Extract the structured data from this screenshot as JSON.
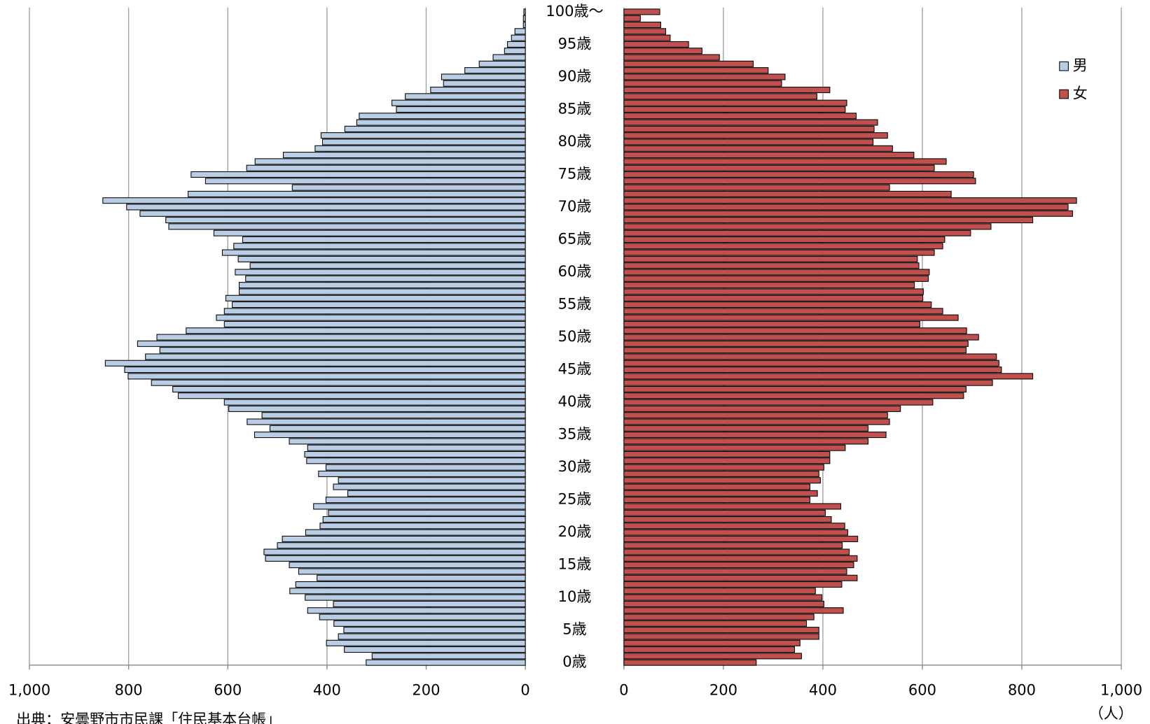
{
  "chart_data": {
    "type": "pyramid",
    "categories": [
      "0歳",
      null,
      null,
      null,
      null,
      "5歳",
      null,
      null,
      null,
      null,
      "10歳",
      null,
      null,
      null,
      null,
      "15歳",
      null,
      null,
      null,
      null,
      "20歳",
      null,
      null,
      null,
      null,
      "25歳",
      null,
      null,
      null,
      null,
      "30歳",
      null,
      null,
      null,
      null,
      "35歳",
      null,
      null,
      null,
      null,
      "40歳",
      null,
      null,
      null,
      null,
      "45歳",
      null,
      null,
      null,
      null,
      "50歳",
      null,
      null,
      null,
      null,
      "55歳",
      null,
      null,
      null,
      null,
      "60歳",
      null,
      null,
      null,
      null,
      "65歳",
      null,
      null,
      null,
      null,
      "70歳",
      null,
      null,
      null,
      null,
      "75歳",
      null,
      null,
      null,
      null,
      "80歳",
      null,
      null,
      null,
      null,
      "85歳",
      null,
      null,
      null,
      null,
      "90歳",
      null,
      null,
      null,
      null,
      "95歳",
      null,
      null,
      null,
      null,
      "100歳～"
    ],
    "series": [
      {
        "name": "男",
        "color": "#b9cde5",
        "values": [
          321,
          309,
          365,
          401,
          377,
          366,
          386,
          415,
          439,
          387,
          444,
          475,
          463,
          420,
          457,
          476,
          524,
          527,
          500,
          490,
          443,
          414,
          408,
          397,
          427,
          402,
          358,
          387,
          377,
          417,
          402,
          441,
          445,
          439,
          476,
          546,
          515,
          561,
          531,
          598,
          607,
          700,
          711,
          754,
          801,
          808,
          847,
          766,
          737,
          782,
          743,
          684,
          607,
          623,
          607,
          591,
          604,
          577,
          577,
          564,
          585,
          555,
          579,
          611,
          588,
          570,
          628,
          719,
          725,
          777,
          804,
          852,
          680,
          470,
          645,
          674,
          562,
          545,
          488,
          424,
          409,
          412,
          364,
          340,
          335,
          260,
          269,
          242,
          191,
          165,
          169,
          122,
          93,
          65,
          42,
          36,
          28,
          21,
          4,
          4,
          3
        ]
      },
      {
        "name": "女",
        "color": "#c0504d",
        "values": [
          266,
          357,
          343,
          354,
          392,
          392,
          367,
          382,
          441,
          402,
          398,
          385,
          438,
          469,
          448,
          462,
          469,
          453,
          439,
          470,
          450,
          444,
          417,
          405,
          436,
          374,
          389,
          374,
          395,
          392,
          402,
          414,
          414,
          445,
          491,
          527,
          491,
          534,
          530,
          556,
          621,
          683,
          688,
          741,
          822,
          759,
          754,
          749,
          688,
          692,
          713,
          689,
          595,
          672,
          641,
          618,
          601,
          602,
          584,
          612,
          614,
          593,
          590,
          624,
          641,
          645,
          697,
          738,
          822,
          902,
          893,
          910,
          658,
          534,
          707,
          703,
          624,
          648,
          583,
          540,
          501,
          530,
          503,
          510,
          467,
          445,
          448,
          388,
          414,
          317,
          324,
          290,
          260,
          192,
          157,
          130,
          93,
          84,
          74,
          33,
          72
        ]
      }
    ],
    "xlim": [
      0,
      1000
    ],
    "xticks": [
      0,
      200,
      400,
      600,
      800,
      {
        "value": 1000,
        "label": "1,000"
      }
    ],
    "x_unit": "（人）",
    "source": "出典：安曇野市市民課「住民基本台帳」",
    "grid": true,
    "legend": "upper right"
  }
}
